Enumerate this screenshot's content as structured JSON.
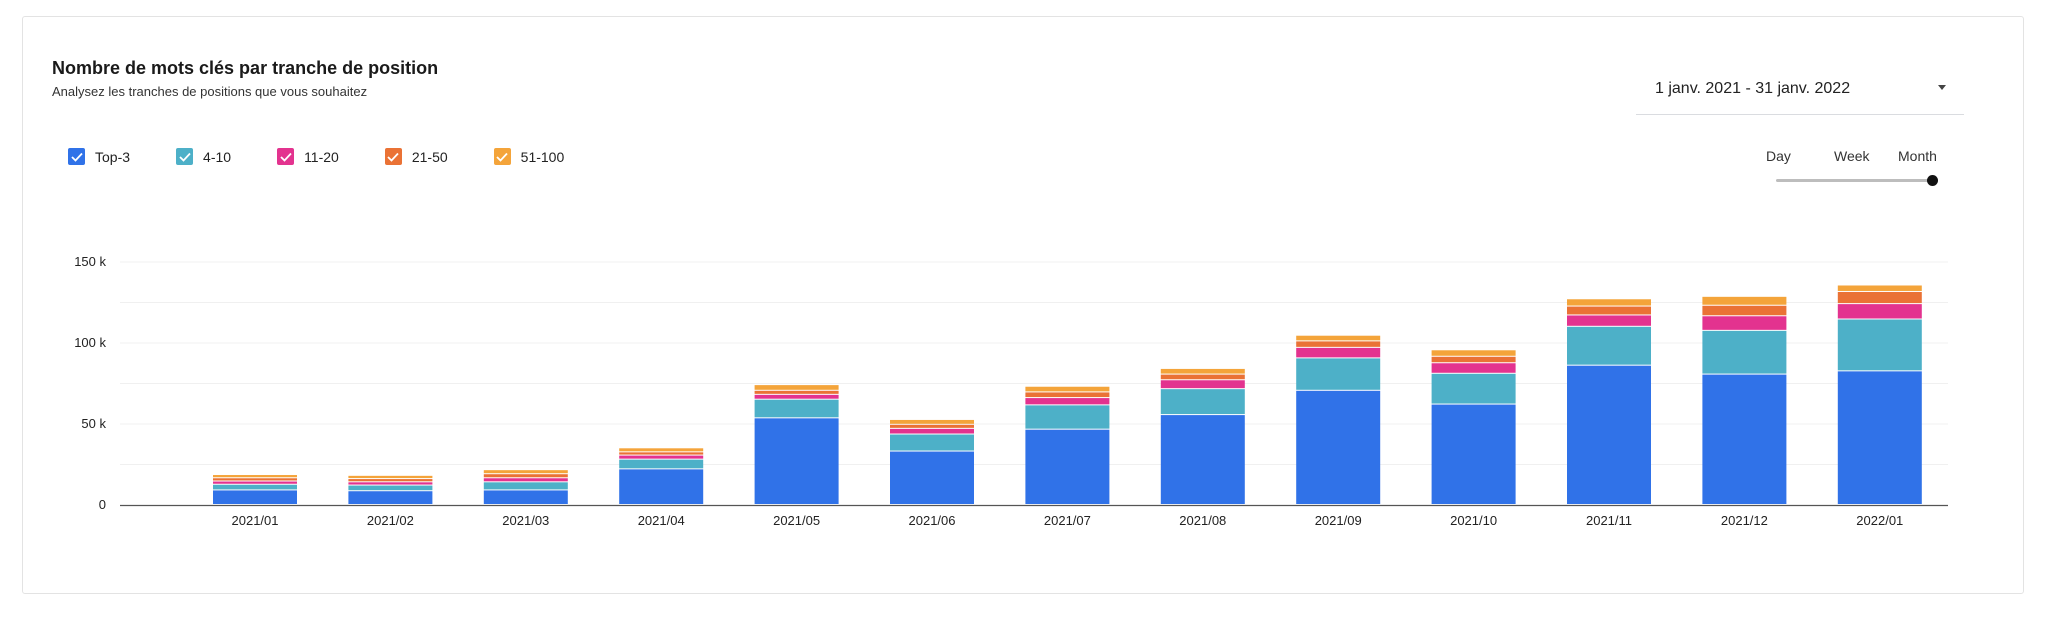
{
  "title": "Nombre de mots clés par tranche de position",
  "subtitle": "Analysez les tranches de positions que vous souhaitez",
  "date_range": "1 janv. 2021 - 31 janv. 2022",
  "granularity": {
    "options": [
      "Day",
      "Week",
      "Month"
    ],
    "selected": "Month"
  },
  "legend": [
    {
      "label": "Top-3",
      "color": "#3072e8",
      "checked": true
    },
    {
      "label": "4-10",
      "color": "#4db0c8",
      "checked": true
    },
    {
      "label": "11-20",
      "color": "#e3338f",
      "checked": true
    },
    {
      "label": "21-50",
      "color": "#ea7235",
      "checked": true
    },
    {
      "label": "51-100",
      "color": "#f4a43a",
      "checked": true
    }
  ],
  "chart_data": {
    "type": "bar",
    "stacked": true,
    "categories": [
      "2021/01",
      "2021/02",
      "2021/03",
      "2021/04",
      "2021/05",
      "2021/06",
      "2021/07",
      "2021/08",
      "2021/09",
      "2021/10",
      "2021/11",
      "2021/12",
      "2022/01"
    ],
    "series": [
      {
        "name": "Top-3",
        "color": "#3072e8",
        "values": [
          9000,
          8500,
          9000,
          22000,
          53500,
          33000,
          46500,
          55500,
          70500,
          62000,
          86000,
          80500,
          82500
        ]
      },
      {
        "name": "4-10",
        "color": "#4db0c8",
        "values": [
          3500,
          3500,
          5000,
          6000,
          11500,
          10500,
          15000,
          16000,
          20000,
          19000,
          24000,
          27000,
          32000
        ]
      },
      {
        "name": "11-20",
        "color": "#e3338f",
        "values": [
          2000,
          2000,
          2500,
          2500,
          3000,
          3500,
          4500,
          5500,
          6500,
          6500,
          7000,
          9000,
          9500
        ]
      },
      {
        "name": "21-50",
        "color": "#ea7235",
        "values": [
          2000,
          2000,
          2500,
          2000,
          2500,
          2500,
          3500,
          3500,
          4000,
          4000,
          5500,
          6500,
          7500
        ]
      },
      {
        "name": "51-100",
        "color": "#f4a43a",
        "values": [
          2000,
          2000,
          2500,
          2500,
          3500,
          3000,
          3500,
          3500,
          3500,
          4000,
          4500,
          5500,
          4000
        ]
      }
    ],
    "y_ticks": [
      {
        "value": 0,
        "label": "0"
      },
      {
        "value": 50000,
        "label": "50 k"
      },
      {
        "value": 100000,
        "label": "100 k"
      },
      {
        "value": 150000,
        "label": "150 k"
      }
    ],
    "ylim": [
      0,
      150000
    ],
    "grid": true,
    "legend_position": "top-left"
  }
}
